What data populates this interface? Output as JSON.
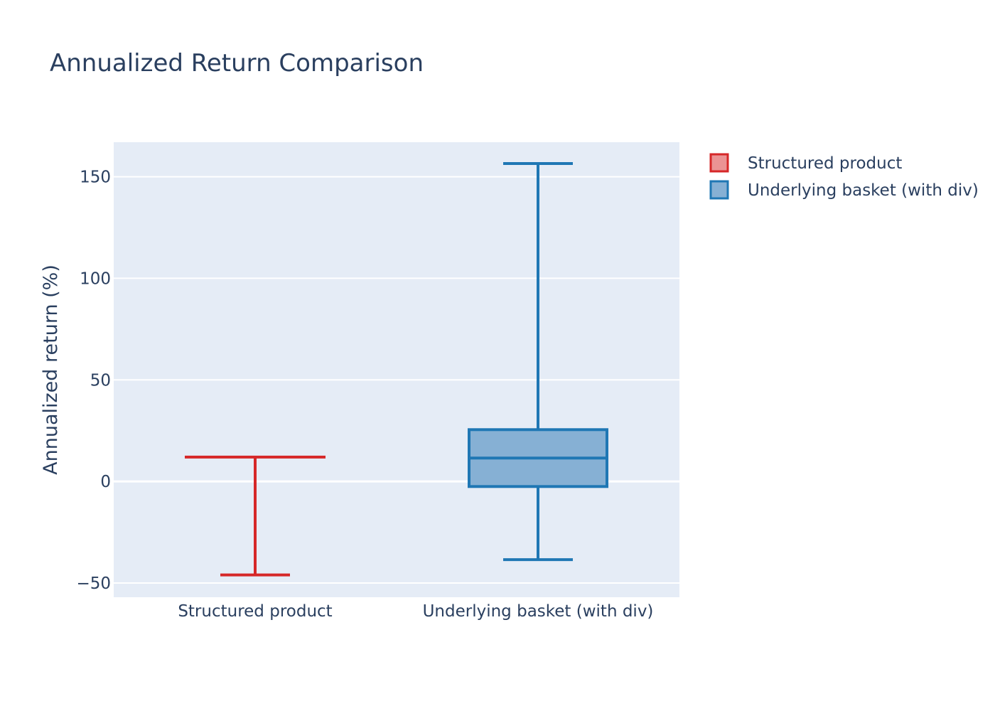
{
  "chart_data": {
    "type": "box",
    "title": "Annualized Return Comparison",
    "xlabel": "",
    "ylabel": "Annualized return (%)",
    "ylim": [
      -57,
      167
    ],
    "yticks": [
      -50,
      0,
      50,
      100,
      150
    ],
    "ytick_labels": [
      "−50",
      "0",
      "50",
      "100",
      "150"
    ],
    "categories": [
      "Structured product",
      "Underlying basket (with div)"
    ],
    "grid": true,
    "legend_position": "top-right",
    "plot_background": "#e5ecf6",
    "series": [
      {
        "name": "Structured product",
        "category": "Structured product",
        "color": "#d62728",
        "fill": "#eb9394",
        "min": -46,
        "q1": 12,
        "median": 12,
        "q3": 12,
        "max": 12
      },
      {
        "name": "Underlying basket (with div)",
        "category": "Underlying basket (with div)",
        "color": "#1f77b4",
        "fill": "#86b0d4",
        "min": -38.5,
        "q1": -2.5,
        "median": 11.5,
        "q3": 25.5,
        "max": 156.5
      }
    ]
  }
}
